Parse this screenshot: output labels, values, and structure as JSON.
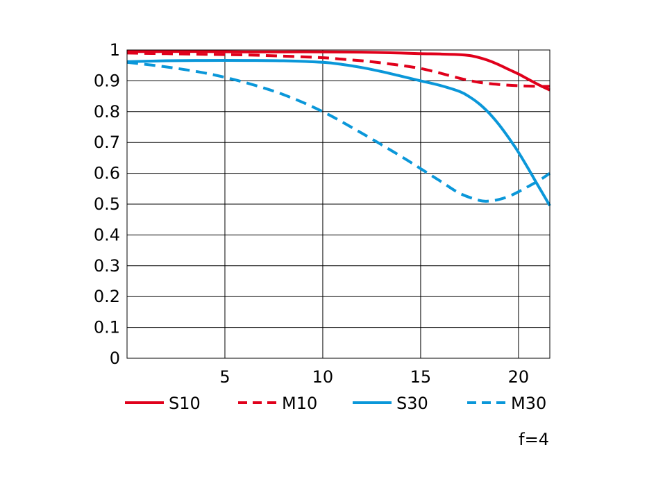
{
  "chart_data": {
    "type": "line",
    "title": "",
    "xlabel": "",
    "ylabel": "",
    "xlim": [
      0,
      21.6
    ],
    "ylim": [
      0,
      1
    ],
    "x_ticks": [
      5,
      10,
      15,
      20
    ],
    "x_tick_labels": [
      "5",
      "10",
      "15",
      "20"
    ],
    "y_ticks": [
      0,
      0.1,
      0.2,
      0.3,
      0.4,
      0.5,
      0.6,
      0.7,
      0.8,
      0.9,
      1
    ],
    "y_tick_labels": [
      "0",
      "0.1",
      "0.2",
      "0.3",
      "0.4",
      "0.5",
      "0.6",
      "0.7",
      "0.8",
      "0.9",
      "1"
    ],
    "grid": true,
    "legend_position": "bottom",
    "annotation": "f=4",
    "series": [
      {
        "name": "S10",
        "color": "#e0001b",
        "dash": "solid",
        "x": [
          0,
          2,
          4,
          6,
          8,
          10,
          12,
          14,
          15,
          16,
          17,
          17.5,
          18,
          18.5,
          19,
          19.5,
          20,
          20.5,
          21,
          21.6
        ],
        "y": [
          0.995,
          0.995,
          0.995,
          0.994,
          0.994,
          0.994,
          0.993,
          0.99,
          0.988,
          0.987,
          0.985,
          0.982,
          0.975,
          0.965,
          0.952,
          0.937,
          0.922,
          0.905,
          0.888,
          0.87
        ]
      },
      {
        "name": "M10",
        "color": "#e0001b",
        "dash": "dashed",
        "x": [
          0,
          2,
          4,
          6,
          8,
          10,
          11,
          12,
          13,
          14,
          15,
          16,
          17,
          18,
          19,
          20,
          21,
          21.6
        ],
        "y": [
          0.99,
          0.988,
          0.986,
          0.984,
          0.98,
          0.975,
          0.97,
          0.965,
          0.958,
          0.95,
          0.94,
          0.925,
          0.908,
          0.895,
          0.888,
          0.884,
          0.882,
          0.882
        ]
      },
      {
        "name": "S30",
        "color": "#0a97d9",
        "dash": "solid",
        "x": [
          0,
          2,
          4,
          6,
          8,
          10,
          11,
          12,
          13,
          14,
          15,
          16,
          17,
          17.5,
          18,
          18.5,
          19,
          19.5,
          20,
          20.5,
          21,
          21.6
        ],
        "y": [
          0.962,
          0.965,
          0.966,
          0.966,
          0.965,
          0.96,
          0.953,
          0.943,
          0.93,
          0.915,
          0.9,
          0.885,
          0.865,
          0.848,
          0.825,
          0.795,
          0.758,
          0.715,
          0.668,
          0.615,
          0.56,
          0.495
        ]
      },
      {
        "name": "M30",
        "color": "#0a97d9",
        "dash": "dashed",
        "x": [
          0,
          2,
          4,
          6,
          8,
          10,
          12,
          14,
          15,
          16,
          17,
          18,
          18.5,
          19,
          19.5,
          20,
          21,
          21.6
        ],
        "y": [
          0.96,
          0.945,
          0.925,
          0.895,
          0.855,
          0.8,
          0.73,
          0.655,
          0.615,
          0.575,
          0.535,
          0.512,
          0.51,
          0.515,
          0.525,
          0.54,
          0.575,
          0.6
        ]
      }
    ]
  }
}
